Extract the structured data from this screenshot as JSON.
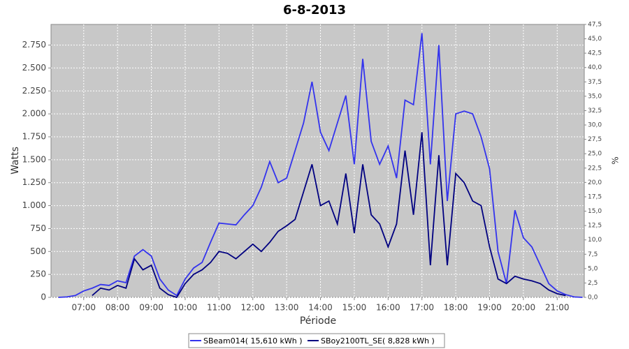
{
  "chart_data": {
    "type": "line",
    "title": "6-8-2013",
    "x_label": "Période",
    "y_label": "Watts",
    "y2_label": "%",
    "x": [
      "06:15",
      "06:30",
      "06:45",
      "07:00",
      "07:15",
      "07:30",
      "07:45",
      "08:00",
      "08:15",
      "08:30",
      "08:45",
      "09:00",
      "09:15",
      "09:30",
      "09:45",
      "10:00",
      "10:15",
      "10:30",
      "10:45",
      "11:00",
      "11:15",
      "11:30",
      "11:45",
      "12:00",
      "12:15",
      "12:30",
      "12:45",
      "13:00",
      "13:15",
      "13:30",
      "13:45",
      "14:00",
      "14:15",
      "14:30",
      "14:45",
      "15:00",
      "15:15",
      "15:30",
      "15:45",
      "16:00",
      "16:15",
      "16:30",
      "16:45",
      "17:00",
      "17:15",
      "17:30",
      "17:45",
      "18:00",
      "18:15",
      "18:30",
      "18:45",
      "19:00",
      "19:15",
      "19:30",
      "19:45",
      "20:00",
      "20:15",
      "20:30",
      "20:45",
      "21:00",
      "21:15",
      "21:30",
      "21:45"
    ],
    "xlim": [
      "06:02",
      "21:48"
    ],
    "xticks": [
      "07:00",
      "08:00",
      "09:00",
      "10:00",
      "11:00",
      "12:00",
      "13:00",
      "14:00",
      "15:00",
      "16:00",
      "17:00",
      "18:00",
      "19:00",
      "20:00",
      "21:00"
    ],
    "ylim": [
      0,
      2975
    ],
    "yticks": [
      0,
      250,
      500,
      750,
      {
        "value": 1000,
        "label": "1.000"
      },
      {
        "value": 1250,
        "label": "1.250"
      },
      {
        "value": 1500,
        "label": "1.500"
      },
      {
        "value": 1750,
        "label": "1.750"
      },
      {
        "value": 2000,
        "label": "2.000"
      },
      {
        "value": 2250,
        "label": "2.250"
      },
      {
        "value": 2500,
        "label": "2.500"
      },
      {
        "value": 2750,
        "label": "2.750"
      }
    ],
    "y2lim": [
      0,
      47.5
    ],
    "y2ticks": [
      {
        "value": 0,
        "label": "0,0"
      },
      {
        "value": 2.5,
        "label": "2,5"
      },
      {
        "value": 5,
        "label": "5,0"
      },
      {
        "value": 7.5,
        "label": "7,5"
      },
      {
        "value": 10,
        "label": "10,0"
      },
      {
        "value": 12.5,
        "label": "12,5"
      },
      {
        "value": 15,
        "label": "15,0"
      },
      {
        "value": 17.5,
        "label": "17,5"
      },
      {
        "value": 20,
        "label": "20,0"
      },
      {
        "value": 22.5,
        "label": "22,5"
      },
      {
        "value": 25,
        "label": "25,0"
      },
      {
        "value": 27.5,
        "label": "27,5"
      },
      {
        "value": 30,
        "label": "30,0"
      },
      {
        "value": 32.5,
        "label": "32,5"
      },
      {
        "value": 35,
        "label": "35,0"
      },
      {
        "value": 37.5,
        "label": "37,5"
      },
      {
        "value": 40,
        "label": "40,0"
      },
      {
        "value": 42.5,
        "label": "42,5"
      },
      {
        "value": 45,
        "label": "45,0"
      },
      {
        "value": 47.5,
        "label": "47,5"
      }
    ],
    "grid": true,
    "series": [
      {
        "name": "SBeam014( 15,610 kWh )",
        "color": "#3333ee",
        "values": [
          0,
          5,
          20,
          70,
          100,
          140,
          130,
          180,
          160,
          450,
          520,
          450,
          200,
          80,
          20,
          200,
          320,
          380,
          600,
          810,
          800,
          790,
          900,
          1000,
          1200,
          1480,
          1250,
          1300,
          1600,
          1900,
          2350,
          1800,
          1600,
          1900,
          2200,
          1450,
          2600,
          1700,
          1450,
          1650,
          1300,
          2150,
          2100,
          2880,
          1450,
          2750,
          1050,
          2000,
          2030,
          2000,
          1750,
          1400,
          500,
          150,
          950,
          650,
          550,
          350,
          150,
          70,
          30,
          5,
          0
        ]
      },
      {
        "name": "SBoy2100TL_SE( 8,828 kWh )",
        "color": "#000080",
        "values": [
          null,
          null,
          null,
          null,
          20,
          100,
          80,
          130,
          100,
          420,
          300,
          350,
          100,
          30,
          0,
          150,
          250,
          300,
          380,
          500,
          480,
          420,
          500,
          580,
          500,
          600,
          720,
          780,
          850,
          1150,
          1450,
          1000,
          1050,
          800,
          1350,
          700,
          1450,
          900,
          800,
          550,
          800,
          1600,
          900,
          1800,
          350,
          1550,
          350,
          1350,
          1250,
          1050,
          1000,
          550,
          200,
          150,
          230,
          200,
          180,
          150,
          80,
          40,
          20,
          null,
          null
        ]
      }
    ]
  }
}
